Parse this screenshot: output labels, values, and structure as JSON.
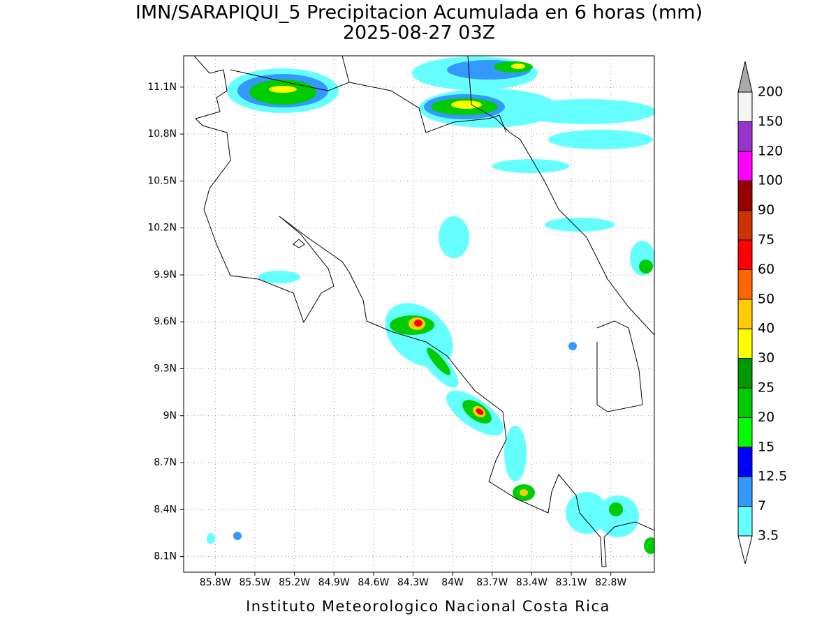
{
  "title": "IMN/SARAPIQUI_5 Precipitacion Acumulada en 6 horas (mm)",
  "subtitle": "2025-08-27 03Z",
  "footer": "Instituto Meteorologico Nacional Costa Rica",
  "map": {
    "lon_range": [
      -86.04,
      -82.47
    ],
    "lat_range": [
      8.0,
      11.3
    ],
    "lon_ticks": [
      {
        "value": -85.8,
        "label": "85.8W"
      },
      {
        "value": -85.5,
        "label": "85.5W"
      },
      {
        "value": -85.2,
        "label": "85.2W"
      },
      {
        "value": -84.9,
        "label": "84.9W"
      },
      {
        "value": -84.6,
        "label": "84.6W"
      },
      {
        "value": -84.3,
        "label": "84.3W"
      },
      {
        "value": -84.0,
        "label": "84W"
      },
      {
        "value": -83.7,
        "label": "83.7W"
      },
      {
        "value": -83.4,
        "label": "83.4W"
      },
      {
        "value": -83.1,
        "label": "83.1W"
      },
      {
        "value": -82.8,
        "label": "82.8W"
      }
    ],
    "lat_ticks": [
      {
        "value": 8.1,
        "label": "8.1N"
      },
      {
        "value": 8.4,
        "label": "8.4N"
      },
      {
        "value": 8.7,
        "label": "8.7N"
      },
      {
        "value": 9.0,
        "label": "9N"
      },
      {
        "value": 9.3,
        "label": "9.3N"
      },
      {
        "value": 9.6,
        "label": "9.6N"
      },
      {
        "value": 9.9,
        "label": "9.9N"
      },
      {
        "value": 10.2,
        "label": "10.2N"
      },
      {
        "value": 10.5,
        "label": "10.5N"
      },
      {
        "value": 10.8,
        "label": "10.8N"
      },
      {
        "value": 11.1,
        "label": "11.1N"
      }
    ]
  },
  "colorbar": {
    "levels": [
      3.5,
      7,
      12.5,
      15,
      20,
      25,
      30,
      40,
      50,
      60,
      75,
      90,
      100,
      120,
      150,
      200
    ],
    "colors": [
      "#66ffff",
      "#3399ff",
      "#0000ff",
      "#00ff00",
      "#00cc00",
      "#009900",
      "#ffff00",
      "#ffcc00",
      "#ff6600",
      "#ff0000",
      "#cc3300",
      "#990000",
      "#ff00ff",
      "#9933cc",
      "#f5f5f5"
    ],
    "under_color": "#ffffff",
    "over_color": "#aaaaaa"
  }
}
